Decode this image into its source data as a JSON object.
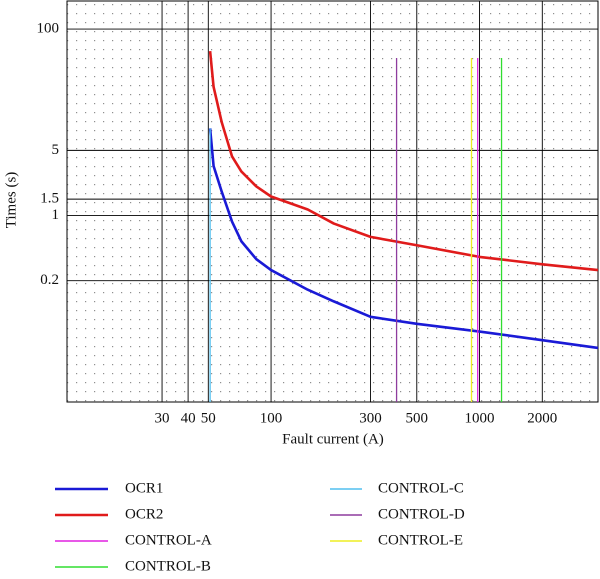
{
  "chart_data": {
    "type": "line",
    "x_label": "Fault current (A)",
    "y_label": "Times (s)",
    "xlog": true,
    "ylog": true,
    "grid": true,
    "xlim": [
      10.5,
      3700
    ],
    "ylim": [
      0.01,
      200
    ],
    "xticks": [
      30,
      40,
      50,
      100,
      300,
      500,
      1000,
      2000
    ],
    "yticks": [
      0.2,
      1,
      1.5,
      5,
      100
    ],
    "legend": "bottom",
    "series": [
      {
        "name": "OCR1",
        "color": "#1a1ad6",
        "width": 2.6,
        "x": [
          51,
          53,
          58,
          65,
          72,
          85,
          100,
          150,
          200,
          300,
          500,
          1000,
          2000,
          3700
        ],
        "values": [
          8.6,
          3.4,
          1.8,
          0.86,
          0.53,
          0.34,
          0.26,
          0.16,
          0.12,
          0.082,
          0.069,
          0.057,
          0.046,
          0.038
        ]
      },
      {
        "name": "OCR2",
        "color": "#e01b1b",
        "width": 2.6,
        "x": [
          51,
          53,
          58,
          65,
          72,
          85,
          100,
          150,
          200,
          300,
          500,
          1000,
          2000,
          3700
        ],
        "values": [
          58,
          24,
          10,
          4.3,
          2.97,
          2.05,
          1.6,
          1.16,
          0.82,
          0.59,
          0.48,
          0.36,
          0.3,
          0.26
        ]
      },
      {
        "name": "CONTROL-A",
        "color": "#e020e0",
        "width": 1.3,
        "x": [
          980,
          980
        ],
        "values": [
          0.01,
          49
        ]
      },
      {
        "name": "CONTROL-B",
        "color": "#30dd30",
        "width": 1.3,
        "x": [
          1275,
          1275
        ],
        "values": [
          0.01,
          49
        ]
      },
      {
        "name": "CONTROL-C",
        "color": "#50bfef",
        "width": 1.3,
        "x": [
          51,
          51
        ],
        "values": [
          0.01,
          8.6
        ]
      },
      {
        "name": "CONTROL-D",
        "color": "#8e3c9e",
        "width": 1.3,
        "x": [
          400,
          400
        ],
        "values": [
          0.01,
          49
        ]
      },
      {
        "name": "CONTROL-E",
        "color": "#eeee22",
        "width": 1.3,
        "x": [
          915,
          915
        ],
        "values": [
          0.01,
          49
        ]
      }
    ]
  }
}
